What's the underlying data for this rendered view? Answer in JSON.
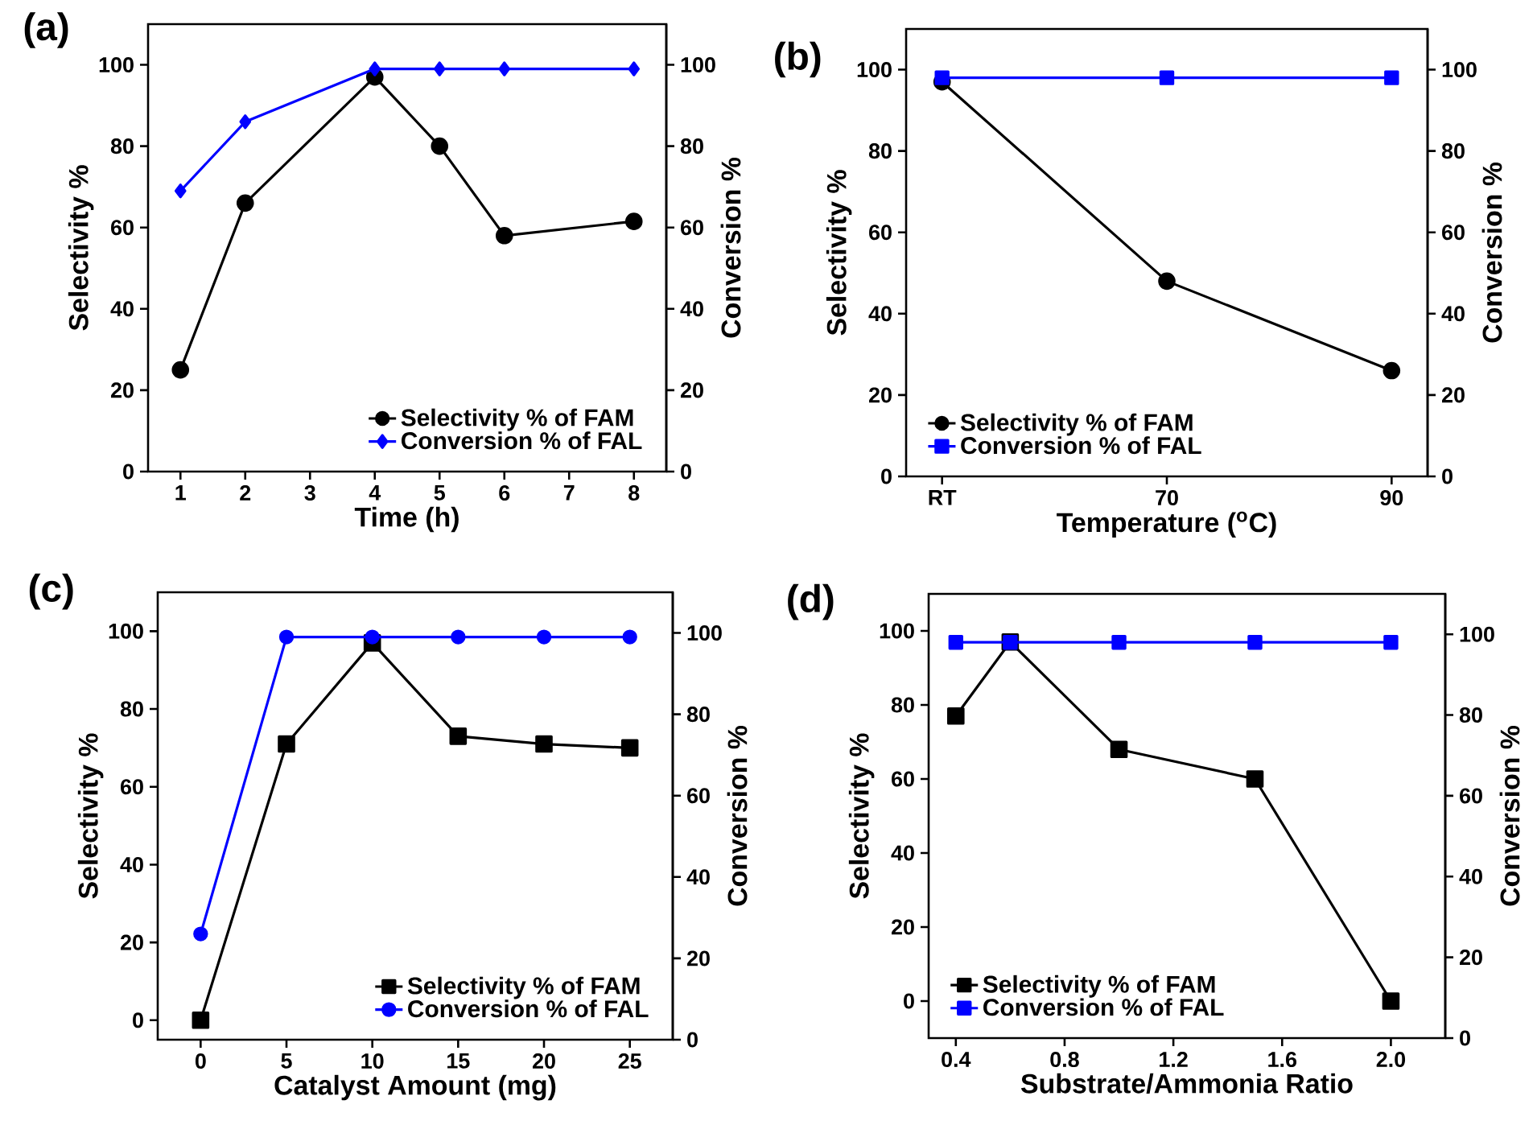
{
  "chart_data": [
    {
      "type": "line",
      "title": "(a)",
      "xlabel": "Time (h)",
      "ylabel": "Selectivity %",
      "y2label": "Conversion %",
      "x": [
        1,
        2,
        4,
        5,
        6,
        8
      ],
      "xlim": [
        0.5,
        8.5
      ],
      "xticks": [
        1,
        2,
        3,
        4,
        5,
        6,
        7,
        8
      ],
      "ylim": [
        0,
        110
      ],
      "yticks": [
        0,
        20,
        40,
        60,
        80,
        100
      ],
      "y2lim": [
        0,
        110
      ],
      "y2ticks": [
        0,
        20,
        40,
        60,
        80,
        100
      ],
      "legend": "bottom right",
      "series": [
        {
          "name": "Selectivity % of FAM",
          "color": "#000000",
          "marker": "circle",
          "values": [
            25,
            66,
            97,
            80,
            58,
            61.5
          ]
        },
        {
          "name": "Conversion % of FAL",
          "color": "#0000ff",
          "marker": "diamond",
          "axis": "y2",
          "values": [
            69,
            86,
            99,
            99,
            99,
            99
          ]
        }
      ]
    },
    {
      "type": "line",
      "title": "(b)",
      "xlabel": "Temperature ($^{o}$C)",
      "ylabel": "Selectivity %",
      "y2label": "Conversion %",
      "categories": [
        "RT",
        "70",
        "90"
      ],
      "ylim": [
        0,
        110
      ],
      "yticks": [
        0,
        20,
        40,
        60,
        80,
        100
      ],
      "y2lim": [
        0,
        110
      ],
      "y2ticks": [
        0,
        20,
        40,
        60,
        80,
        100
      ],
      "legend": "bottom left",
      "series": [
        {
          "name": "Selectivity % of FAM",
          "color": "#000000",
          "marker": "circle",
          "values": [
            97,
            48,
            26
          ]
        },
        {
          "name": "Conversion % of FAL",
          "color": "#0000ff",
          "marker": "square",
          "axis": "y2",
          "values": [
            98,
            98,
            98
          ]
        }
      ]
    },
    {
      "type": "line",
      "title": "(c)",
      "xlabel": "Catalyst Amount (mg)",
      "ylabel": "Selectivity %",
      "y2label": "Conversion %",
      "x": [
        0,
        5,
        10,
        15,
        20,
        25
      ],
      "xlim": [
        -2.5,
        27.5
      ],
      "xticks": [
        0,
        5,
        10,
        15,
        20,
        25
      ],
      "ylim": [
        -5,
        110
      ],
      "yticks": [
        0,
        20,
        40,
        60,
        80,
        100
      ],
      "y2lim": [
        0,
        110
      ],
      "y2ticks": [
        0,
        20,
        40,
        60,
        80,
        100
      ],
      "legend": "bottom right",
      "series": [
        {
          "name": "Selectivity % of FAM",
          "color": "#000000",
          "marker": "square",
          "values": [
            0,
            71,
            97,
            73,
            71,
            70
          ]
        },
        {
          "name": "Conversion % of FAL",
          "color": "#0000ff",
          "marker": "circle",
          "axis": "y2",
          "values": [
            26,
            99,
            99,
            99,
            99,
            99
          ]
        }
      ]
    },
    {
      "type": "line",
      "title": "(d)",
      "xlabel": "Substrate/Ammonia Ratio",
      "ylabel": "Selectivity %",
      "y2label": "Conversion %",
      "x": [
        0.4,
        0.6,
        1.0,
        1.5,
        2.0
      ],
      "xlim": [
        0.3,
        2.2
      ],
      "xticks": [
        0.4,
        0.8,
        1.2,
        1.6,
        {
          "value": 2.0,
          "label": "2.0"
        }
      ],
      "ylim": [
        -10,
        110
      ],
      "yticks": [
        0,
        20,
        40,
        60,
        80,
        100
      ],
      "y2lim": [
        0,
        110
      ],
      "y2ticks": [
        0,
        20,
        40,
        60,
        80,
        100
      ],
      "legend": "bottom left",
      "series": [
        {
          "name": "Selectivity % of FAM",
          "color": "#000000",
          "marker": "square",
          "values": [
            77,
            97,
            68,
            60,
            0
          ]
        },
        {
          "name": "Conversion % of FAL",
          "color": "#0000ff",
          "marker": "square",
          "axis": "y2",
          "values": [
            98,
            98,
            98,
            98,
            98
          ]
        }
      ]
    }
  ]
}
